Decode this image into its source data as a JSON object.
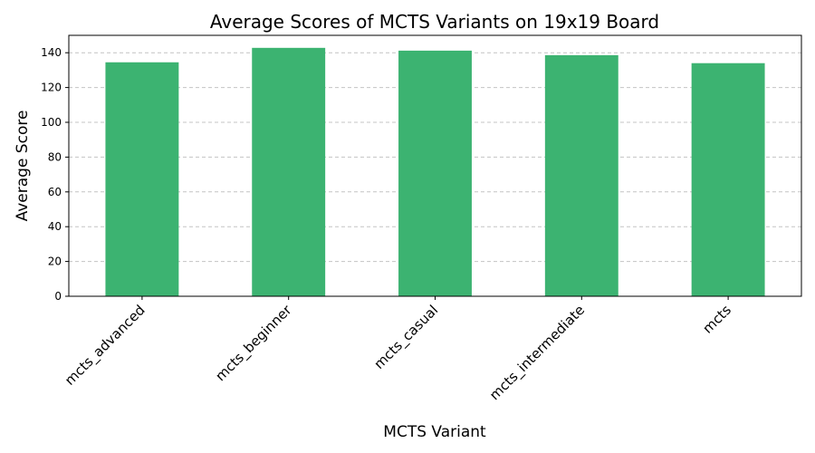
{
  "chart_data": {
    "type": "bar",
    "title": "Average Scores of MCTS Variants on 19x19 Board",
    "xlabel": "MCTS Variant",
    "ylabel": "Average Score",
    "categories": [
      "mcts_advanced",
      "mcts_beginner",
      "mcts_casual",
      "mcts_intermediate",
      "mcts"
    ],
    "values": [
      134.5,
      142.8,
      141.2,
      138.6,
      134.0
    ],
    "ylim": [
      0,
      150
    ],
    "yticks": [
      0,
      20,
      40,
      60,
      80,
      100,
      120,
      140
    ],
    "grid": "y, dashed",
    "bar_color": "#3cb371",
    "legend": "none"
  }
}
